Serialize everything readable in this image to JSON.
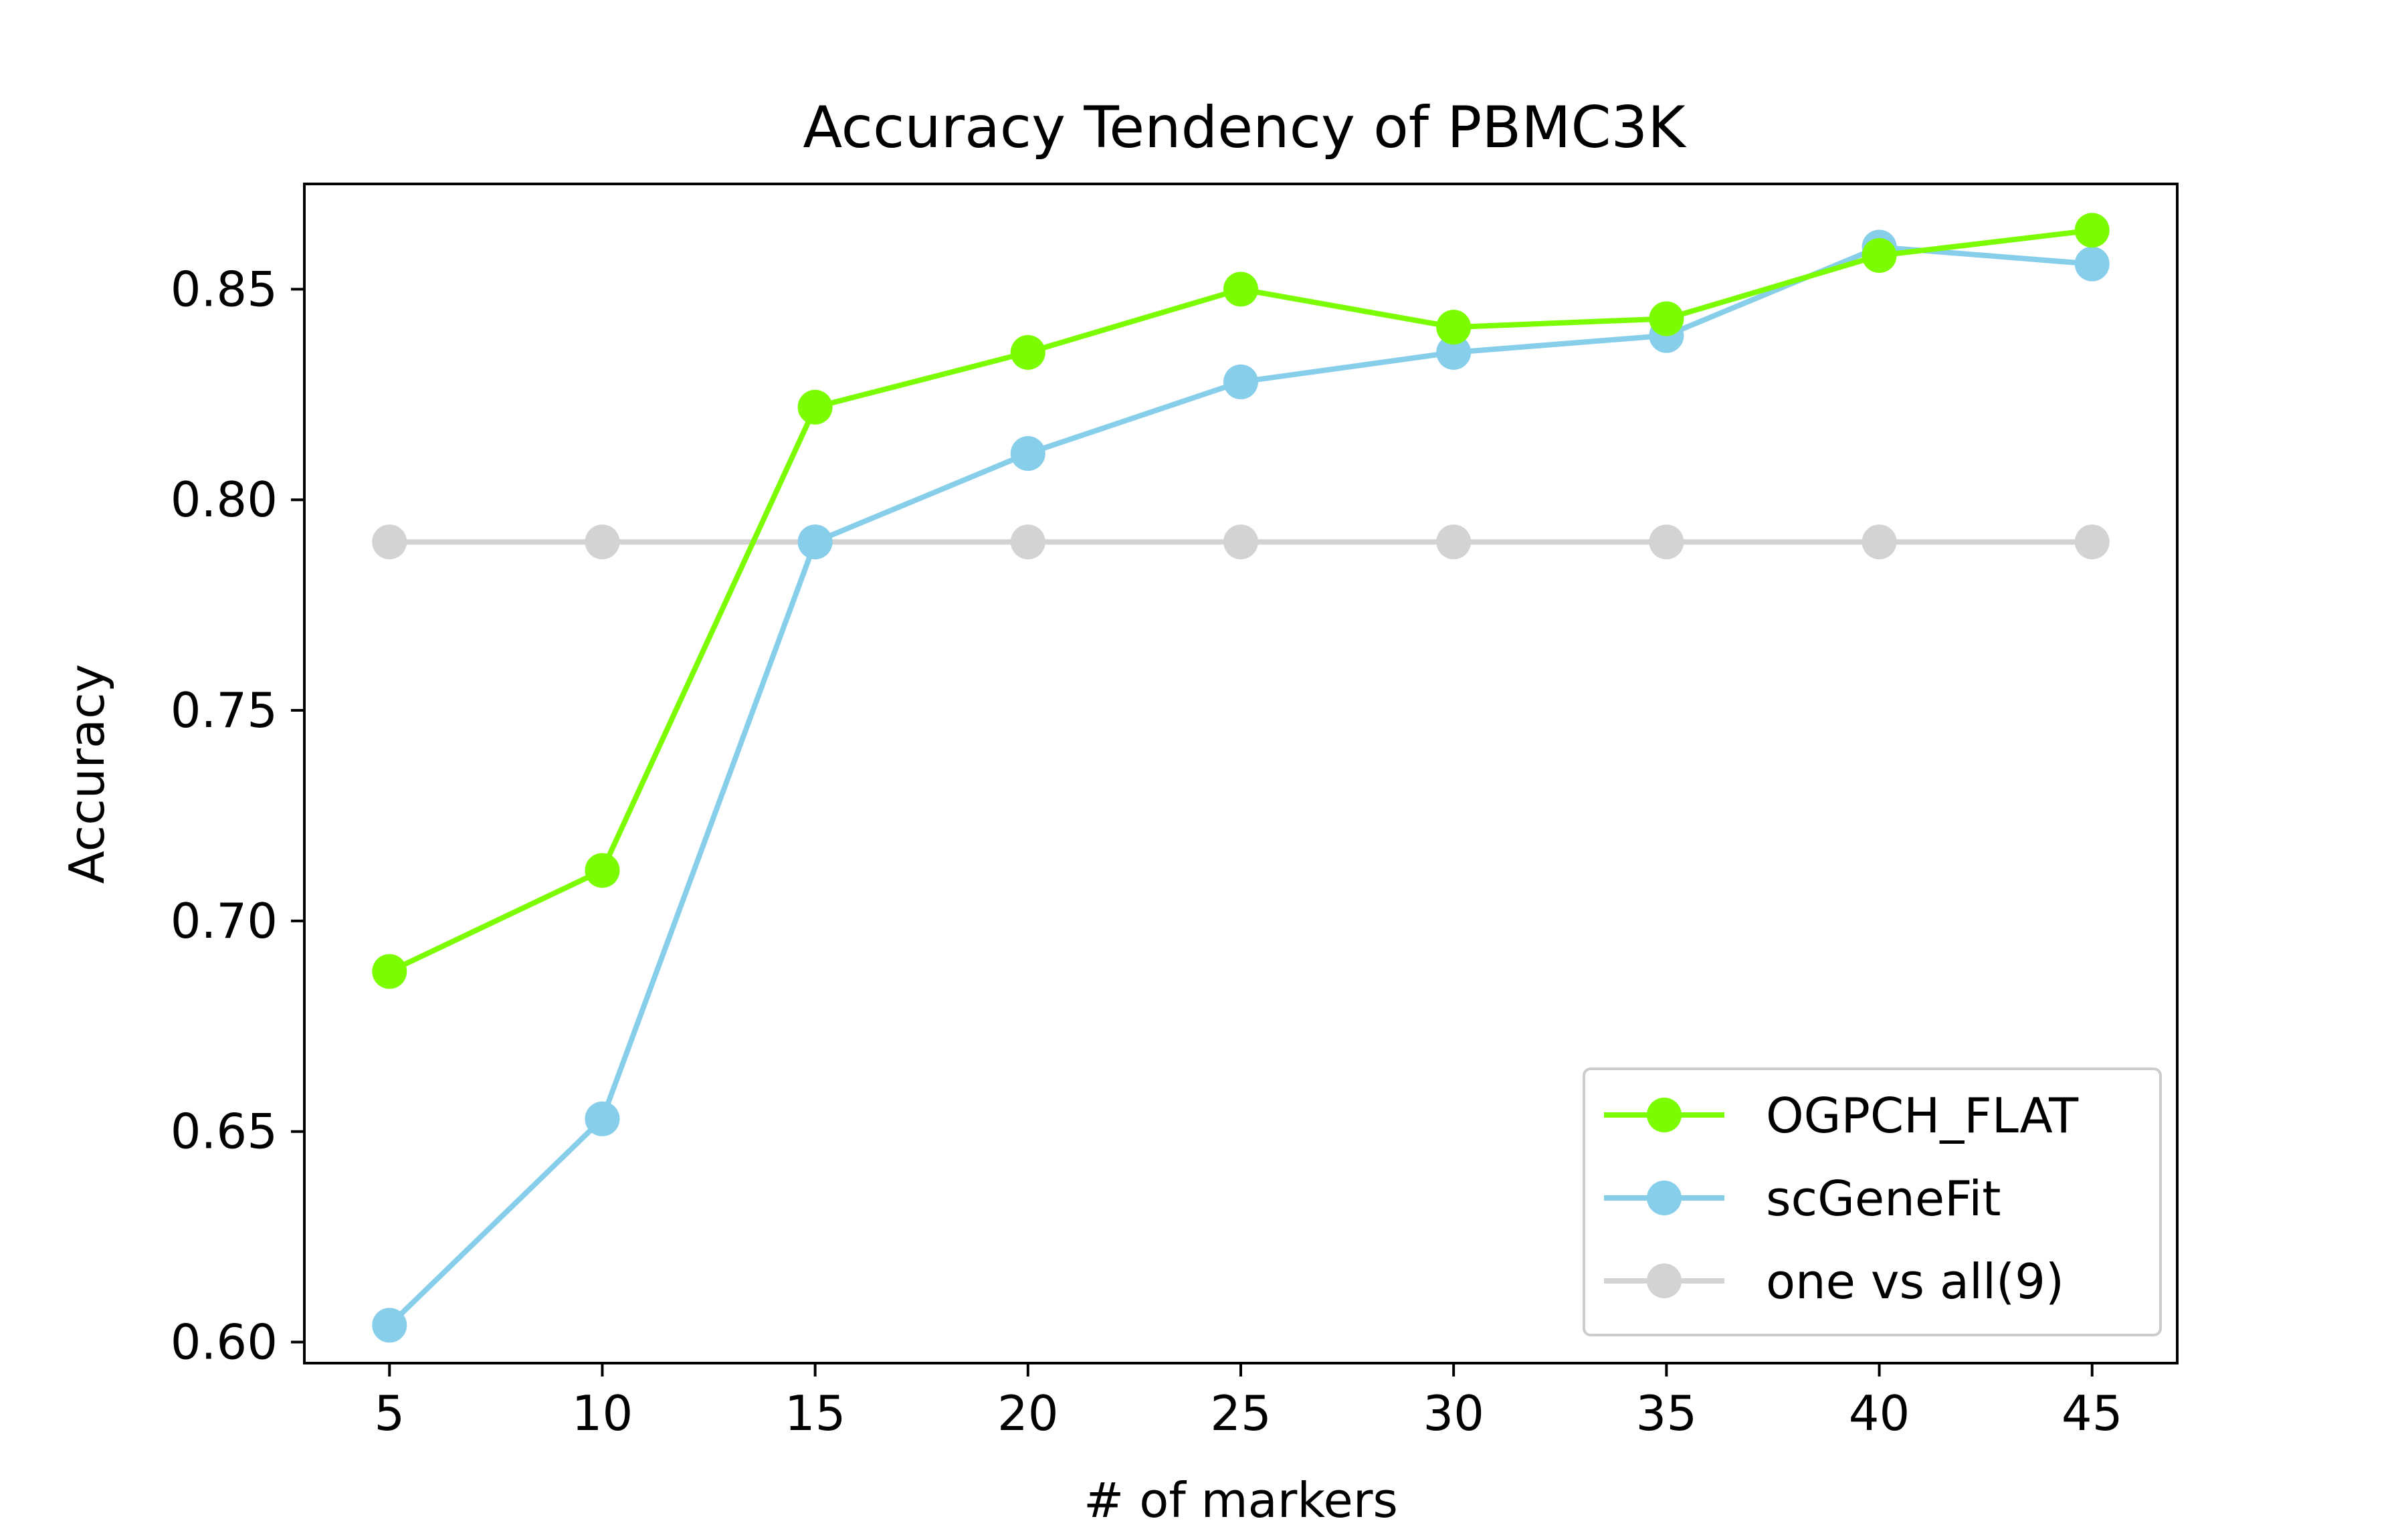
{
  "chart_data": {
    "type": "line",
    "title": "Accuracy Tendency of PBMC3K",
    "xlabel": "# of markers",
    "ylabel": "Accuracy",
    "x": [
      5,
      10,
      15,
      20,
      25,
      30,
      35,
      40,
      45
    ],
    "xlim": [
      3,
      47
    ],
    "ylim": [
      0.595,
      0.875
    ],
    "xticks": [
      "5",
      "10",
      "15",
      "20",
      "25",
      "30",
      "35",
      "40",
      "45"
    ],
    "yticks": [
      "0.60",
      "0.65",
      "0.70",
      "0.75",
      "0.80",
      "0.85"
    ],
    "grid": false,
    "legend_position": "lower-right",
    "series": [
      {
        "name": "OGPCH_FLAT",
        "color": "#7cfc00",
        "values": [
          0.688,
          0.712,
          0.822,
          0.835,
          0.85,
          0.841,
          0.843,
          0.858,
          0.864
        ]
      },
      {
        "name": "scGeneFit",
        "color": "#87ceeb",
        "values": [
          0.604,
          0.653,
          0.79,
          0.811,
          0.828,
          0.835,
          0.839,
          0.86,
          0.856
        ]
      },
      {
        "name": "one vs all(9)",
        "color": "#d3d3d3",
        "values": [
          0.79,
          0.79,
          0.79,
          0.79,
          0.79,
          0.79,
          0.79,
          0.79,
          0.79
        ]
      }
    ]
  }
}
